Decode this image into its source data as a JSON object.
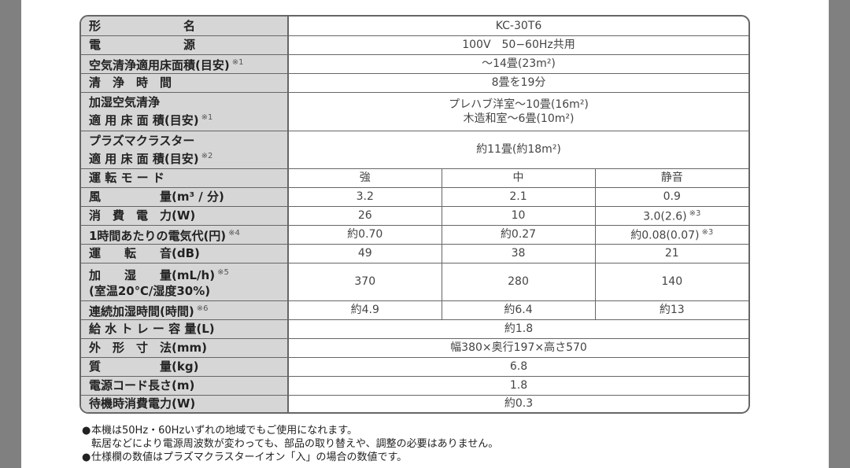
{
  "spec": {
    "model": {
      "label": "形　　　　　　　名",
      "value": "KC-30T6"
    },
    "power": {
      "label": "電　　　　　　　源",
      "value": "100V　50−60Hz共用"
    },
    "air_area": {
      "label": "空気清浄適用床面積(目安)",
      "note": "※1",
      "value": "～14畳(23m²)"
    },
    "clean_time": {
      "label": "清　浄　時　間",
      "value": "8畳を19分"
    },
    "humid_area": {
      "label1": "加湿空気清浄",
      "label2": "適 用 床 面 積(目安)",
      "note": "※1",
      "value1": "プレハブ洋室～10畳(16m²)",
      "value2": "木造和室～6畳(10m²)"
    },
    "plasma_area": {
      "label1": "プラズマクラスター",
      "label2": "適 用 床 面 積(目安)",
      "note": "※2",
      "value": "約11畳(約18m²)"
    },
    "mode": {
      "label": "運 転 モ ー ド",
      "values": [
        "強",
        "中",
        "静音"
      ]
    },
    "airflow": {
      "label": "風　　　　　量(m³ / 分)",
      "values": [
        "3.2",
        "2.1",
        "0.9"
      ]
    },
    "consumption": {
      "label": "消　費　電　力(W)",
      "values": [
        "26",
        "10",
        "3.0(2.6)"
      ],
      "value_note": "※3"
    },
    "cost": {
      "label": "1時間あたりの電気代(円)",
      "note": "※4",
      "values": [
        "約0.70",
        "約0.27",
        "約0.08(0.07)"
      ],
      "value_note": "※3"
    },
    "noise": {
      "label": "運　　転　　音(dB)",
      "values": [
        "49",
        "38",
        "21"
      ]
    },
    "humidify": {
      "label1": "加　　湿　　量(mL/h)",
      "note": "※5",
      "label2": "(室温20℃/湿度30%)",
      "values": [
        "370",
        "280",
        "140"
      ]
    },
    "humid_time": {
      "label": "連続加湿時間(時間)",
      "note": "※6",
      "values": [
        "約4.9",
        "約6.4",
        "約13"
      ]
    },
    "tray": {
      "label": "給 水 ト レ ー 容 量(L)",
      "value": "約1.8"
    },
    "dimensions": {
      "label": "外　形　寸　法(mm)",
      "value": "幅380×奥行197×高さ570"
    },
    "mass": {
      "label": "質　　　　　量(kg)",
      "value": "6.8"
    },
    "cord": {
      "label": "電源コード長さ(m)",
      "value": "1.8"
    },
    "standby": {
      "label": "待機時消費電力(W)",
      "value": "約0.3"
    }
  },
  "notes": {
    "bullet": "●",
    "n1_line1": "本機は50Hz・60Hzいずれの地域でもご使用になれます。",
    "n1_line2": "転居などにより電源周波数が変わっても、部品の取り替えや、調整の必要はありません。",
    "n2": "仕様欄の数値はプラズマクラスターイオン「入」の場合の数値です。"
  },
  "colors": {
    "label_bg": "#d6d6d6",
    "border": "#666666",
    "side_strip": "#808080"
  }
}
